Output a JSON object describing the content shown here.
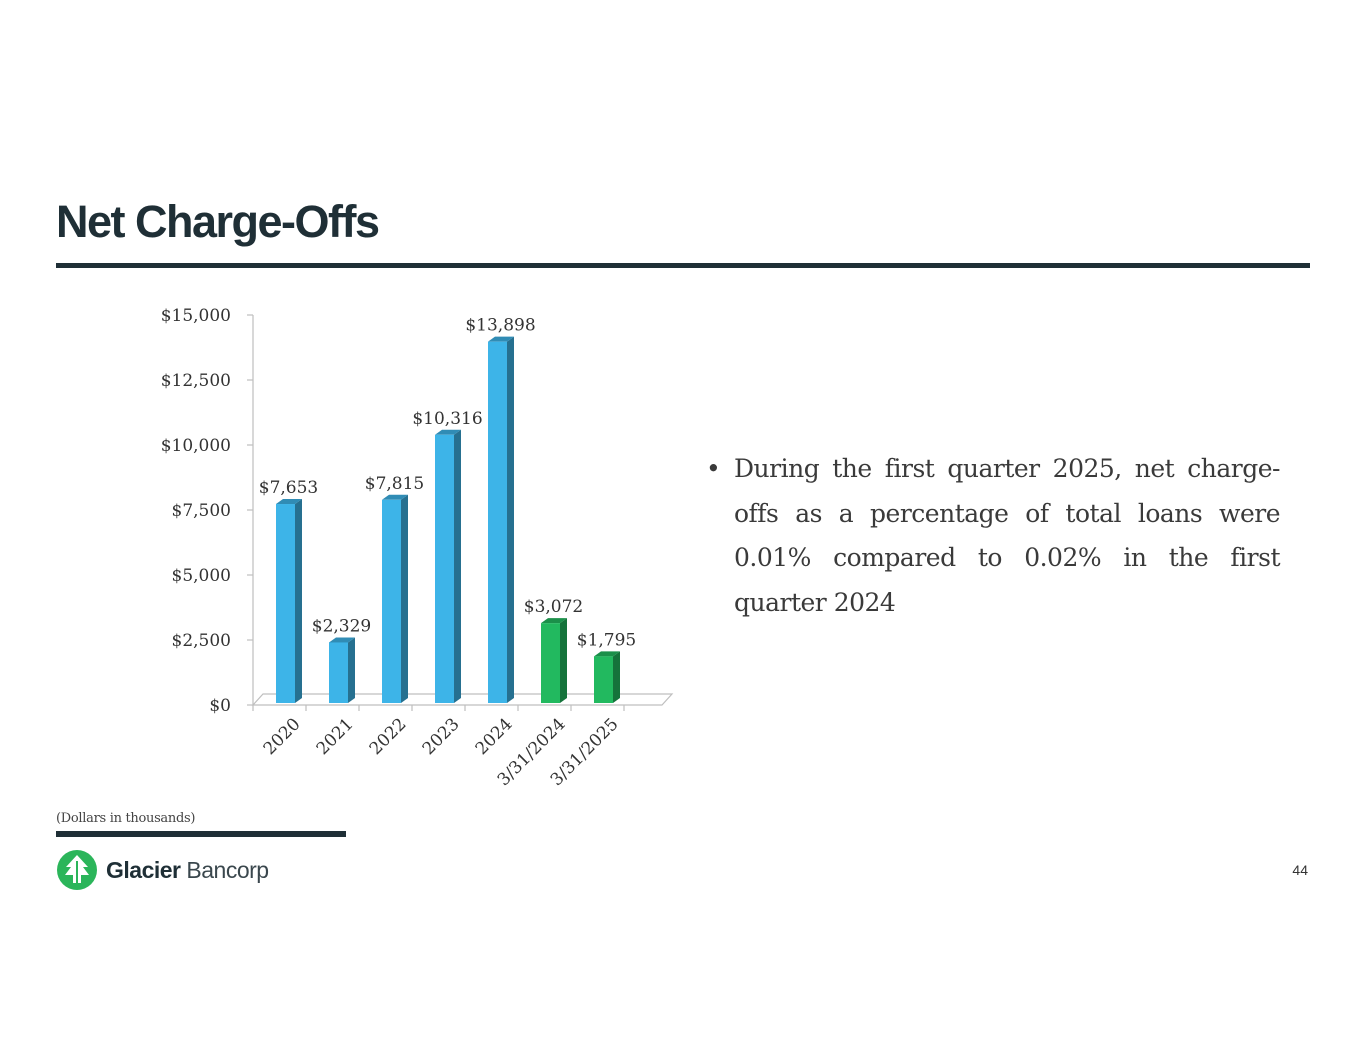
{
  "slide": {
    "title": "Net Charge-Offs",
    "bullet": "During the first quarter 2025, net charge-offs as a percentage of total loans were 0.01% compared to 0.02% in the first quarter 2024",
    "footnote": "(Dollars in thousands)",
    "page_number": "44"
  },
  "logo": {
    "bold": "Glacier",
    "light": " Bancorp",
    "icon": "pine-tree-icon",
    "color": "#2bb55a"
  },
  "chart_data": {
    "type": "bar",
    "categories": [
      "2020",
      "2021",
      "2022",
      "2023",
      "2024",
      "3/31/2024",
      "3/31/2025"
    ],
    "values": [
      7653,
      2329,
      7815,
      10316,
      13898,
      3072,
      1795
    ],
    "data_labels": [
      "$7,653",
      "$2,329",
      "$7,815",
      "$10,316",
      "$13,898",
      "$3,072",
      "$1,795"
    ],
    "bar_colors": [
      "#3db4e8",
      "#3db4e8",
      "#3db4e8",
      "#3db4e8",
      "#3db4e8",
      "#22b95f",
      "#22b95f"
    ],
    "ylim": [
      0,
      15000
    ],
    "yticks": [
      0,
      2500,
      5000,
      7500,
      10000,
      12500,
      15000
    ],
    "ytick_labels": [
      "$0",
      "$2,500",
      "$5,000",
      "$7,500",
      "$10,000",
      "$12,500",
      "$15,000"
    ],
    "grid": false,
    "legend": "none"
  }
}
